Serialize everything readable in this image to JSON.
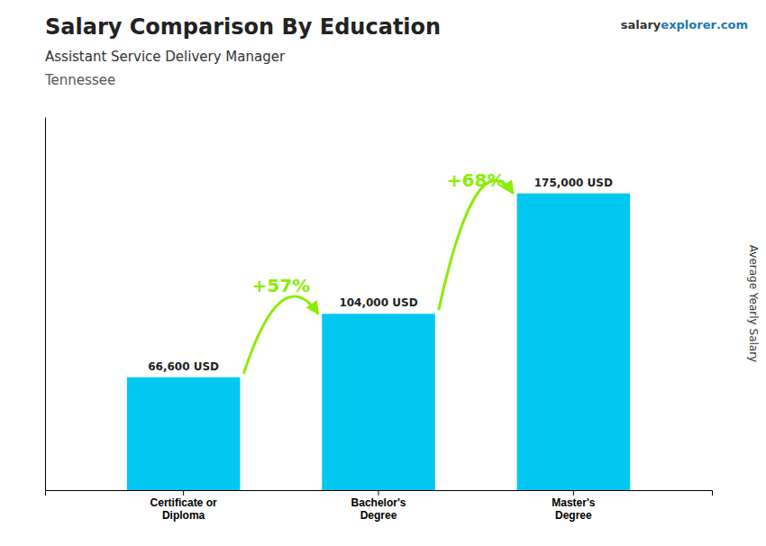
{
  "chart_data": {
    "type": "bar",
    "title": "Salary Comparison By Education",
    "subtitle": "Assistant Service Delivery Manager",
    "location": "Tennessee",
    "watermark": [
      "salary",
      "explorer",
      ".com"
    ],
    "ylabel": "Average Yearly Salary",
    "categories": [
      "Certificate or\nDiploma",
      "Bachelor's\nDegree",
      "Master's\nDegree"
    ],
    "values": [
      66600,
      104000,
      175000
    ],
    "value_labels": [
      "66,600 USD",
      "104,000 USD",
      "175,000 USD"
    ],
    "data_labels": true,
    "color": "#00c8f0",
    "annotations": [
      {
        "text": "+57%",
        "color": "#88ee00"
      },
      {
        "text": "+68%",
        "color": "#88ee00"
      }
    ],
    "ylim": [
      0,
      220000
    ],
    "tick_labels": "x",
    "grid": false
  }
}
